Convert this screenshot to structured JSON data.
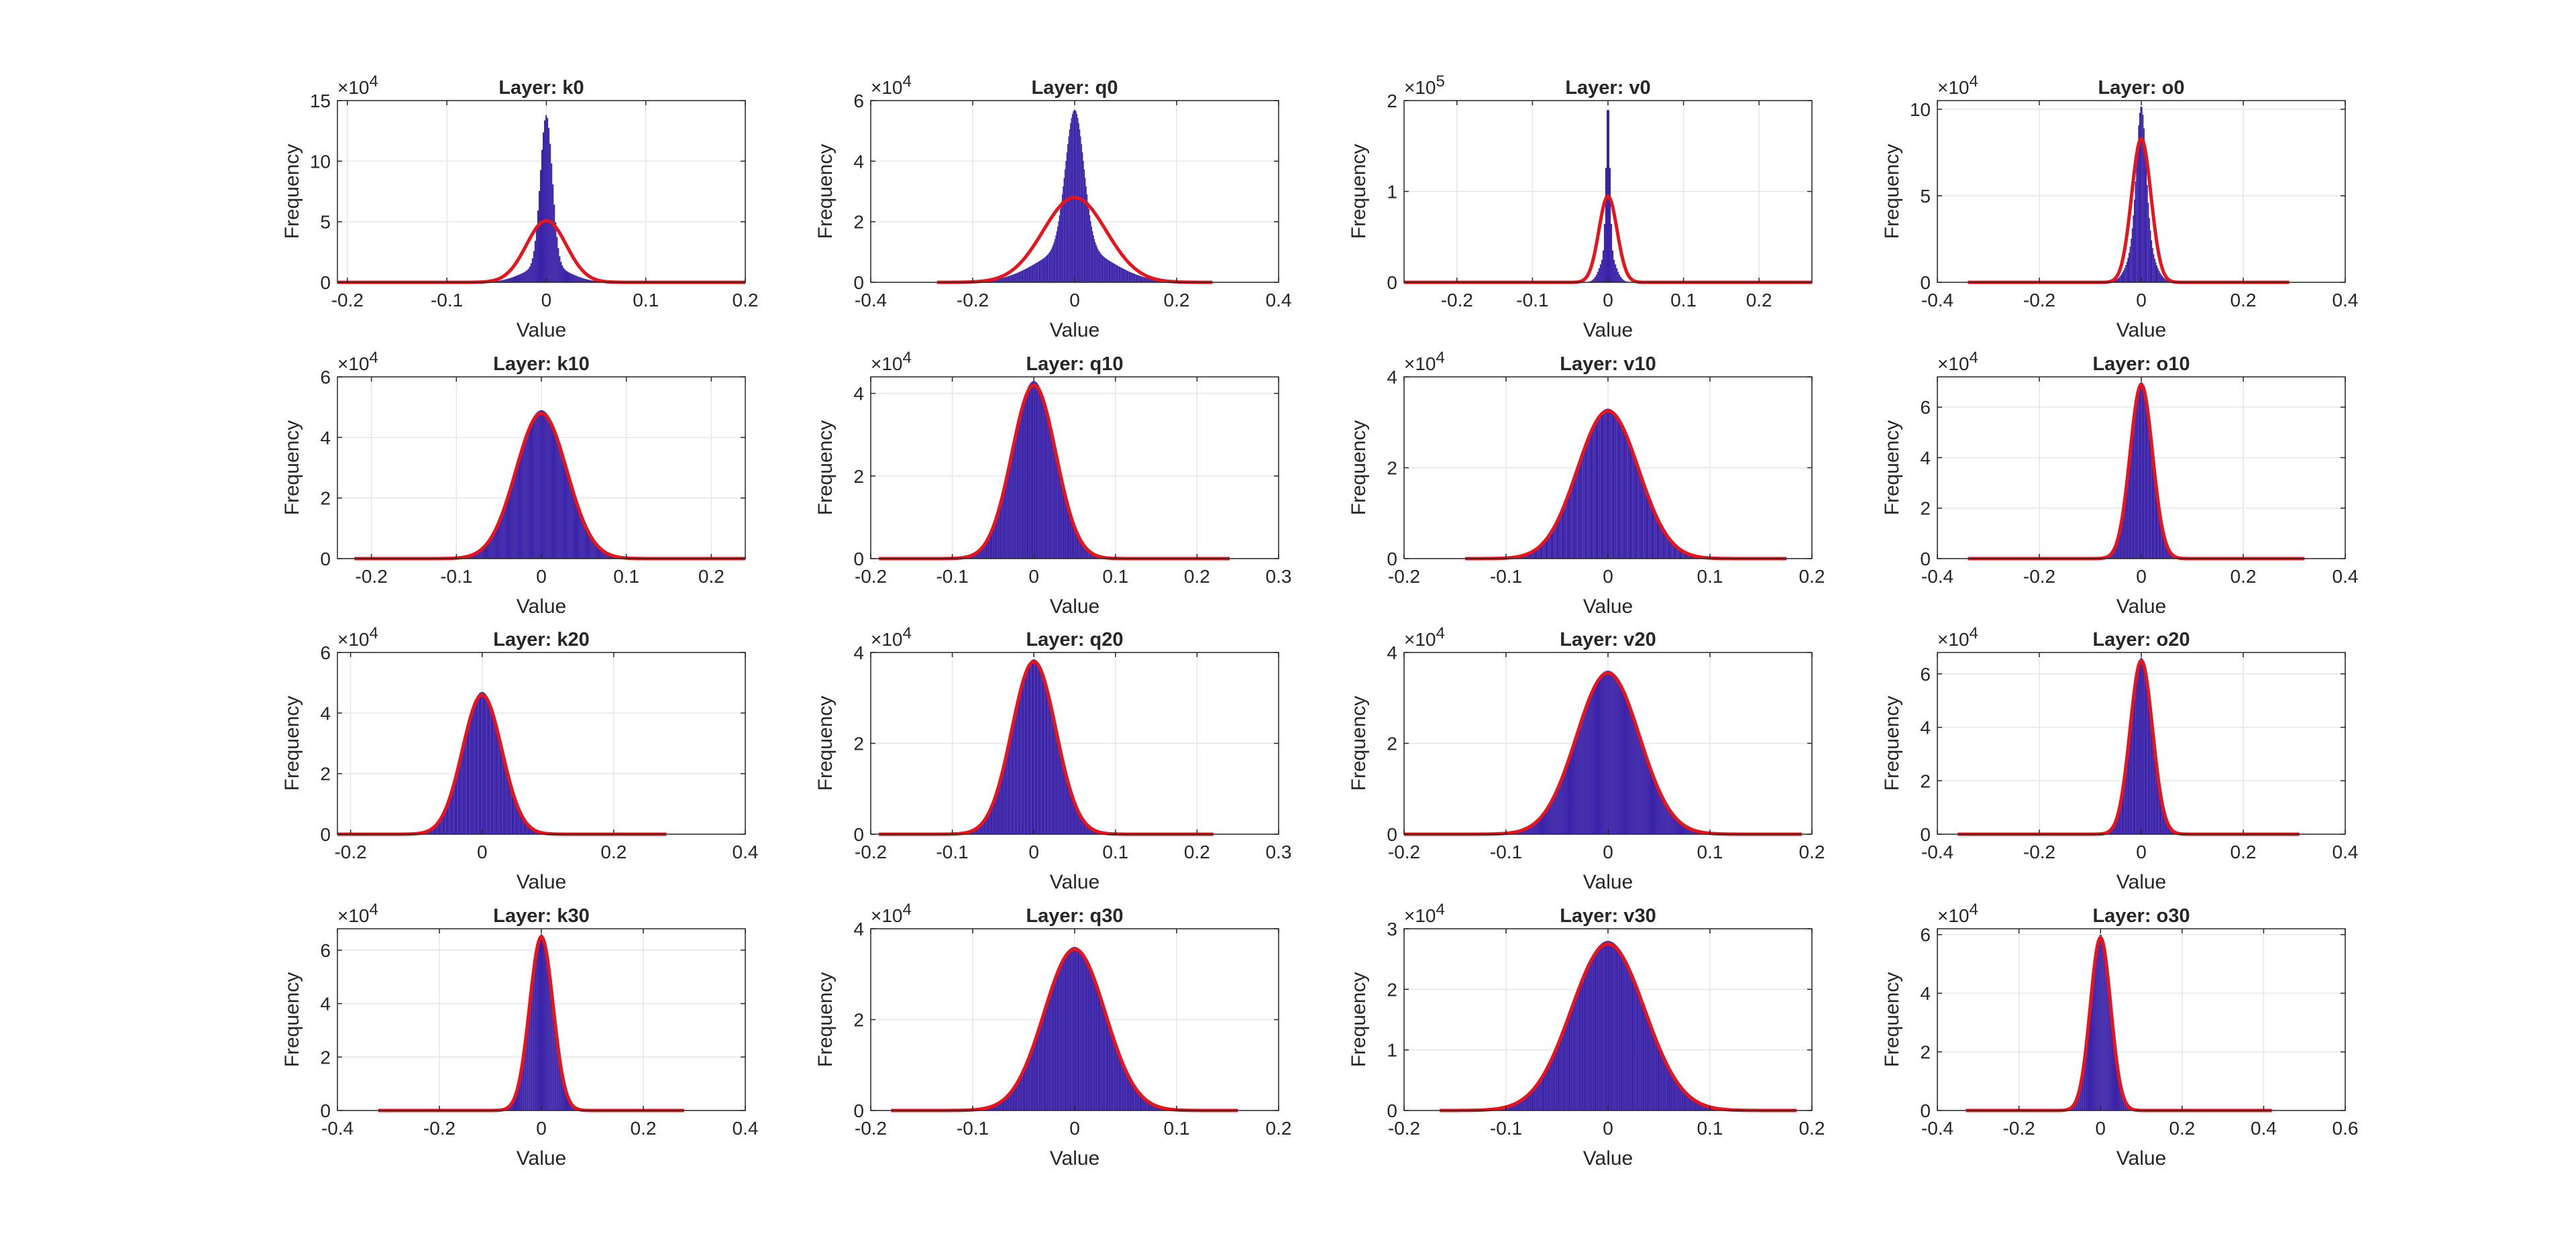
{
  "colors": {
    "bar": "#3a22a8",
    "fit": "#e8141b",
    "axis": "#262626",
    "grid": "#e6e6e6"
  },
  "chart_data": [
    {
      "type": "bar",
      "title": "Layer: k0",
      "xlabel": "Value",
      "ylabel": "Frequency",
      "exponent": "4",
      "xlim": [
        -0.21,
        0.2
      ],
      "ylim": [
        0,
        15
      ],
      "xticks": [
        -0.2,
        -0.1,
        0,
        0.1,
        0.2
      ],
      "xtick_labels": [
        "-0.2",
        "-0.1",
        "0",
        "0.1",
        "0.2"
      ],
      "yticks": [
        0,
        5,
        10,
        15
      ],
      "ytick_labels": [
        "0",
        "5",
        "10",
        "15"
      ],
      "grid": true,
      "hist": {
        "mu": 0,
        "sigma": 0.006,
        "peak": 13.8,
        "tail_sigma": 0.022,
        "tail_frac": 0.1,
        "range": [
          -0.21,
          0.2
        ]
      },
      "fit": {
        "mu": 0,
        "sigma": 0.02,
        "peak": 5.1,
        "range": [
          -0.21,
          0.2
        ]
      }
    },
    {
      "type": "bar",
      "title": "Layer: q0",
      "xlabel": "Value",
      "ylabel": "Frequency",
      "exponent": "4",
      "xlim": [
        -0.4,
        0.4
      ],
      "ylim": [
        0,
        6
      ],
      "xticks": [
        -0.4,
        -0.2,
        0,
        0.2,
        0.4
      ],
      "xtick_labels": [
        "-0.4",
        "-0.2",
        "0",
        "0.2",
        "0.4"
      ],
      "yticks": [
        0,
        2,
        4,
        6
      ],
      "ytick_labels": [
        "0",
        "2",
        "4",
        "6"
      ],
      "grid": true,
      "hist": {
        "mu": 0,
        "sigma": 0.018,
        "peak": 5.7,
        "tail_sigma": 0.07,
        "tail_frac": 0.2,
        "range": [
          -0.27,
          0.27
        ]
      },
      "fit": {
        "mu": 0,
        "sigma": 0.062,
        "peak": 2.8,
        "range": [
          -0.27,
          0.27
        ]
      }
    },
    {
      "type": "bar",
      "title": "Layer: v0",
      "xlabel": "Value",
      "ylabel": "Frequency",
      "exponent": "5",
      "xlim": [
        -0.27,
        0.27
      ],
      "ylim": [
        0,
        2
      ],
      "xticks": [
        -0.2,
        -0.1,
        0,
        0.1,
        0.2
      ],
      "xtick_labels": [
        "-0.2",
        "-0.1",
        "0",
        "0.1",
        "0.2"
      ],
      "yticks": [
        0,
        1,
        2
      ],
      "ytick_labels": [
        "0",
        "1",
        "2"
      ],
      "grid": true,
      "hist": {
        "mu": 0,
        "sigma": 0.0025,
        "peak": 2.0,
        "tail_sigma": 0.009,
        "tail_frac": 0.18,
        "range": [
          -0.27,
          0.27
        ]
      },
      "fit": {
        "mu": 0,
        "sigma": 0.012,
        "peak": 0.95,
        "range": [
          -0.27,
          0.27
        ]
      }
    },
    {
      "type": "bar",
      "title": "Layer: o0",
      "xlabel": "Value",
      "ylabel": "Frequency",
      "exponent": "4",
      "xlim": [
        -0.4,
        0.4
      ],
      "ylim": [
        0,
        10.5
      ],
      "xticks": [
        -0.4,
        -0.2,
        0,
        0.2,
        0.4
      ],
      "xtick_labels": [
        "-0.4",
        "-0.2",
        "0",
        "0.2",
        "0.4"
      ],
      "yticks": [
        0,
        5,
        10
      ],
      "ytick_labels": [
        "0",
        "5",
        "10"
      ],
      "grid": true,
      "hist": {
        "mu": 0,
        "sigma": 0.009,
        "peak": 10.2,
        "tail_sigma": 0.02,
        "tail_frac": 0.3,
        "range": [
          -0.34,
          0.29
        ]
      },
      "fit": {
        "mu": 0,
        "sigma": 0.019,
        "peak": 8.3,
        "range": [
          -0.34,
          0.29
        ]
      }
    },
    {
      "type": "bar",
      "title": "Layer: k10",
      "xlabel": "Value",
      "ylabel": "Frequency",
      "exponent": "4",
      "xlim": [
        -0.24,
        0.24
      ],
      "ylim": [
        0,
        6
      ],
      "xticks": [
        -0.2,
        -0.1,
        0,
        0.1,
        0.2
      ],
      "xtick_labels": [
        "-0.2",
        "-0.1",
        "0",
        "0.1",
        "0.2"
      ],
      "yticks": [
        0,
        2,
        4,
        6
      ],
      "ytick_labels": [
        "0",
        "2",
        "4",
        "6"
      ],
      "grid": true,
      "hist": {
        "mu": 0,
        "sigma": 0.03,
        "peak": 4.9,
        "tail_sigma": 0.03,
        "tail_frac": 0,
        "range": [
          -0.22,
          0.24
        ]
      },
      "fit": {
        "mu": 0,
        "sigma": 0.03,
        "peak": 4.8,
        "range": [
          -0.22,
          0.24
        ]
      }
    },
    {
      "type": "bar",
      "title": "Layer: q10",
      "xlabel": "Value",
      "ylabel": "Frequency",
      "exponent": "4",
      "xlim": [
        -0.2,
        0.3
      ],
      "ylim": [
        0,
        4.4
      ],
      "xticks": [
        -0.2,
        -0.1,
        0,
        0.1,
        0.2,
        0.3
      ],
      "xtick_labels": [
        "-0.2",
        "-0.1",
        "0",
        "0.1",
        "0.2",
        "0.3"
      ],
      "yticks": [
        0,
        2,
        4
      ],
      "ytick_labels": [
        "0",
        "2",
        "4"
      ],
      "grid": true,
      "hist": {
        "mu": 0,
        "sigma": 0.027,
        "peak": 4.3,
        "tail_sigma": 0.027,
        "tail_frac": 0,
        "range": [
          -0.19,
          0.24
        ]
      },
      "fit": {
        "mu": 0,
        "sigma": 0.027,
        "peak": 4.2,
        "range": [
          -0.19,
          0.24
        ]
      }
    },
    {
      "type": "bar",
      "title": "Layer: v10",
      "xlabel": "Value",
      "ylabel": "Frequency",
      "exponent": "4",
      "xlim": [
        -0.2,
        0.2
      ],
      "ylim": [
        0,
        4
      ],
      "xticks": [
        -0.2,
        -0.1,
        0,
        0.1,
        0.2
      ],
      "xtick_labels": [
        "-0.2",
        "-0.1",
        "0",
        "0.1",
        "0.2"
      ],
      "yticks": [
        0,
        2,
        4
      ],
      "ytick_labels": [
        "0",
        "2",
        "4"
      ],
      "grid": true,
      "hist": {
        "mu": 0,
        "sigma": 0.03,
        "peak": 3.3,
        "tail_sigma": 0.03,
        "tail_frac": 0,
        "range": [
          -0.14,
          0.175
        ]
      },
      "fit": {
        "mu": 0,
        "sigma": 0.03,
        "peak": 3.25,
        "range": [
          -0.14,
          0.175
        ]
      }
    },
    {
      "type": "bar",
      "title": "Layer: o10",
      "xlabel": "Value",
      "ylabel": "Frequency",
      "exponent": "4",
      "xlim": [
        -0.4,
        0.4
      ],
      "ylim": [
        0,
        7.2
      ],
      "xticks": [
        -0.4,
        -0.2,
        0,
        0.2,
        0.4
      ],
      "xtick_labels": [
        "-0.4",
        "-0.2",
        "0",
        "0.2",
        "0.4"
      ],
      "yticks": [
        0,
        2,
        4,
        6
      ],
      "ytick_labels": [
        "0",
        "2",
        "4",
        "6"
      ],
      "grid": true,
      "hist": {
        "mu": 0,
        "sigma": 0.022,
        "peak": 7.0,
        "tail_sigma": 0.022,
        "tail_frac": 0,
        "range": [
          -0.34,
          0.32
        ]
      },
      "fit": {
        "mu": 0,
        "sigma": 0.022,
        "peak": 6.9,
        "range": [
          -0.34,
          0.32
        ]
      }
    },
    {
      "type": "bar",
      "title": "Layer: k20",
      "xlabel": "Value",
      "ylabel": "Frequency",
      "exponent": "4",
      "xlim": [
        -0.22,
        0.4
      ],
      "ylim": [
        0,
        6
      ],
      "xticks": [
        -0.2,
        0,
        0.2,
        0.4
      ],
      "xtick_labels": [
        "-0.2",
        "0",
        "0.2",
        "0.4"
      ],
      "yticks": [
        0,
        2,
        4,
        6
      ],
      "ytick_labels": [
        "0",
        "2",
        "4",
        "6"
      ],
      "grid": true,
      "hist": {
        "mu": 0,
        "sigma": 0.03,
        "peak": 4.7,
        "tail_sigma": 0.03,
        "tail_frac": 0,
        "range": [
          -0.22,
          0.28
        ]
      },
      "fit": {
        "mu": 0,
        "sigma": 0.03,
        "peak": 4.6,
        "range": [
          -0.22,
          0.28
        ]
      }
    },
    {
      "type": "bar",
      "title": "Layer: q20",
      "xlabel": "Value",
      "ylabel": "Frequency",
      "exponent": "4",
      "xlim": [
        -0.2,
        0.3
      ],
      "ylim": [
        0,
        4
      ],
      "xticks": [
        -0.2,
        -0.1,
        0,
        0.1,
        0.2,
        0.3
      ],
      "xtick_labels": [
        "-0.2",
        "-0.1",
        "0",
        "0.1",
        "0.2",
        "0.3"
      ],
      "yticks": [
        0,
        2,
        4
      ],
      "ytick_labels": [
        "0",
        "2",
        "4"
      ],
      "grid": true,
      "hist": {
        "mu": 0,
        "sigma": 0.027,
        "peak": 3.85,
        "tail_sigma": 0.027,
        "tail_frac": 0,
        "range": [
          -0.19,
          0.22
        ]
      },
      "fit": {
        "mu": 0,
        "sigma": 0.027,
        "peak": 3.8,
        "range": [
          -0.19,
          0.22
        ]
      }
    },
    {
      "type": "bar",
      "title": "Layer: v20",
      "xlabel": "Value",
      "ylabel": "Frequency",
      "exponent": "4",
      "xlim": [
        -0.2,
        0.2
      ],
      "ylim": [
        0,
        4
      ],
      "xticks": [
        -0.2,
        -0.1,
        0,
        0.1,
        0.2
      ],
      "xtick_labels": [
        "-0.2",
        "-0.1",
        "0",
        "0.1",
        "0.2"
      ],
      "yticks": [
        0,
        2,
        4
      ],
      "ytick_labels": [
        "0",
        "2",
        "4"
      ],
      "grid": true,
      "hist": {
        "mu": 0,
        "sigma": 0.031,
        "peak": 3.6,
        "tail_sigma": 0.031,
        "tail_frac": 0,
        "range": [
          -0.2,
          0.19
        ]
      },
      "fit": {
        "mu": 0,
        "sigma": 0.031,
        "peak": 3.55,
        "range": [
          -0.2,
          0.19
        ]
      }
    },
    {
      "type": "bar",
      "title": "Layer: o20",
      "xlabel": "Value",
      "ylabel": "Frequency",
      "exponent": "4",
      "xlim": [
        -0.4,
        0.4
      ],
      "ylim": [
        0,
        6.8
      ],
      "xticks": [
        -0.4,
        -0.2,
        0,
        0.2,
        0.4
      ],
      "xtick_labels": [
        "-0.4",
        "-0.2",
        "0",
        "0.2",
        "0.4"
      ],
      "yticks": [
        0,
        2,
        4,
        6
      ],
      "ytick_labels": [
        "0",
        "2",
        "4",
        "6"
      ],
      "grid": true,
      "hist": {
        "mu": 0,
        "sigma": 0.022,
        "peak": 6.6,
        "tail_sigma": 0.022,
        "tail_frac": 0,
        "range": [
          -0.36,
          0.31
        ]
      },
      "fit": {
        "mu": 0,
        "sigma": 0.022,
        "peak": 6.5,
        "range": [
          -0.36,
          0.31
        ]
      }
    },
    {
      "type": "bar",
      "title": "Layer: k30",
      "xlabel": "Value",
      "ylabel": "Frequency",
      "exponent": "4",
      "xlim": [
        -0.4,
        0.4
      ],
      "ylim": [
        0,
        6.8
      ],
      "xticks": [
        -0.4,
        -0.2,
        0,
        0.2,
        0.4
      ],
      "xtick_labels": [
        "-0.4",
        "-0.2",
        "0",
        "0.2",
        "0.4"
      ],
      "yticks": [
        0,
        2,
        4,
        6
      ],
      "ytick_labels": [
        "0",
        "2",
        "4",
        "6"
      ],
      "grid": true,
      "hist": {
        "mu": 0,
        "sigma": 0.023,
        "peak": 6.6,
        "tail_sigma": 0.023,
        "tail_frac": 0,
        "range": [
          -0.32,
          0.28
        ]
      },
      "fit": {
        "mu": 0,
        "sigma": 0.023,
        "peak": 6.5,
        "range": [
          -0.32,
          0.28
        ]
      }
    },
    {
      "type": "bar",
      "title": "Layer: q30",
      "xlabel": "Value",
      "ylabel": "Frequency",
      "exponent": "4",
      "xlim": [
        -0.2,
        0.2
      ],
      "ylim": [
        0,
        4
      ],
      "xticks": [
        -0.2,
        -0.1,
        0,
        0.1,
        0.2
      ],
      "xtick_labels": [
        "-0.2",
        "-0.1",
        "0",
        "0.1",
        "0.2"
      ],
      "yticks": [
        0,
        2,
        4
      ],
      "ytick_labels": [
        "0",
        "2",
        "4"
      ],
      "grid": true,
      "hist": {
        "mu": 0,
        "sigma": 0.03,
        "peak": 3.6,
        "tail_sigma": 0.03,
        "tail_frac": 0,
        "range": [
          -0.18,
          0.16
        ]
      },
      "fit": {
        "mu": 0,
        "sigma": 0.03,
        "peak": 3.55,
        "range": [
          -0.18,
          0.16
        ]
      }
    },
    {
      "type": "bar",
      "title": "Layer: v30",
      "xlabel": "Value",
      "ylabel": "Frequency",
      "exponent": "4",
      "xlim": [
        -0.2,
        0.2
      ],
      "ylim": [
        0,
        3
      ],
      "xticks": [
        -0.2,
        -0.1,
        0,
        0.1,
        0.2
      ],
      "xtick_labels": [
        "-0.2",
        "-0.1",
        "0",
        "0.1",
        "0.2"
      ],
      "yticks": [
        0,
        1,
        2,
        3
      ],
      "ytick_labels": [
        "0",
        "1",
        "2",
        "3"
      ],
      "grid": true,
      "hist": {
        "mu": 0,
        "sigma": 0.036,
        "peak": 2.8,
        "tail_sigma": 0.036,
        "tail_frac": 0,
        "range": [
          -0.165,
          0.185
        ]
      },
      "fit": {
        "mu": 0,
        "sigma": 0.036,
        "peak": 2.75,
        "range": [
          -0.165,
          0.185
        ]
      }
    },
    {
      "type": "bar",
      "title": "Layer: o30",
      "xlabel": "Value",
      "ylabel": "Frequency",
      "exponent": "4",
      "xlim": [
        -0.4,
        0.6
      ],
      "ylim": [
        0,
        6.2
      ],
      "xticks": [
        -0.4,
        -0.2,
        0,
        0.2,
        0.4,
        0.6
      ],
      "xtick_labels": [
        "-0.4",
        "-0.2",
        "0",
        "0.2",
        "0.4",
        "0.6"
      ],
      "yticks": [
        0,
        2,
        4,
        6
      ],
      "ytick_labels": [
        "0",
        "2",
        "4",
        "6"
      ],
      "grid": true,
      "hist": {
        "mu": 0,
        "sigma": 0.025,
        "peak": 6.0,
        "tail_sigma": 0.025,
        "tail_frac": 0,
        "range": [
          -0.33,
          0.42
        ]
      },
      "fit": {
        "mu": 0,
        "sigma": 0.025,
        "peak": 5.9,
        "range": [
          -0.33,
          0.42
        ]
      }
    }
  ]
}
